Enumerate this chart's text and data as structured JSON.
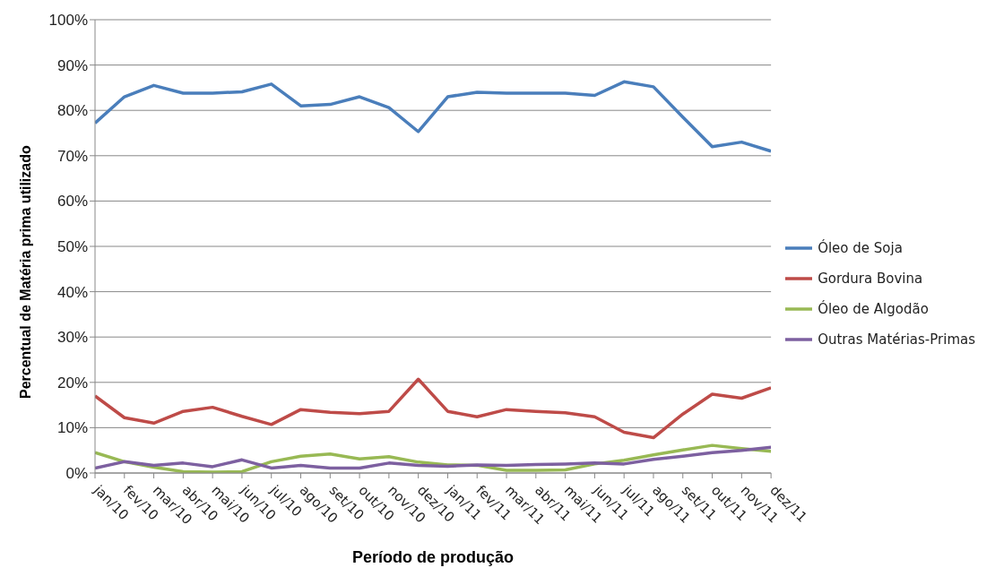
{
  "chart_data": {
    "type": "line",
    "xlabel": "Período de produção",
    "ylabel": "Percentual de Matéria prima utilizado",
    "categories": [
      "jan/10",
      "fev/10",
      "mar/10",
      "abr/10",
      "mai/10",
      "jun/10",
      "jul/10",
      "ago/10",
      "set/10",
      "out/10",
      "nov/10",
      "dez/10",
      "jan/11",
      "fev/11",
      "mar/11",
      "abr/11",
      "mai/11",
      "jun/11",
      "jul/11",
      "ago/11",
      "set/11",
      "out/11",
      "nov/11",
      "dez/11"
    ],
    "series": [
      {
        "name": "Óleo de Soja",
        "color": "#4a7ebb",
        "values": [
          77.2,
          83,
          85.5,
          83.8,
          83.8,
          84.1,
          85.8,
          81,
          81.3,
          83,
          80.6,
          75.3,
          83,
          84,
          83.8,
          83.8,
          83.8,
          83.3,
          86.3,
          85.2,
          78.5,
          72,
          73,
          71
        ]
      },
      {
        "name": "Gordura Bovina",
        "color": "#be4b48",
        "values": [
          17,
          12.2,
          11,
          13.6,
          14.5,
          12.5,
          10.7,
          14,
          13.4,
          13.1,
          13.6,
          20.7,
          13.6,
          12.4,
          14,
          13.6,
          13.3,
          12.4,
          9,
          7.8,
          13,
          17.4,
          16.5,
          18.8
        ]
      },
      {
        "name": "Óleo de Algodão",
        "color": "#98b954",
        "values": [
          4.5,
          2.5,
          1.3,
          0.3,
          0.2,
          0.3,
          2.5,
          3.7,
          4.2,
          3.1,
          3.6,
          2.4,
          1.8,
          1.7,
          0.6,
          0.6,
          0.7,
          2,
          2.8,
          4,
          5.1,
          6.1,
          5.4,
          4.8
        ]
      },
      {
        "name": "Outras Matérias-Primas",
        "color": "#7d60a0",
        "values": [
          1.1,
          2.5,
          1.7,
          2.2,
          1.4,
          2.9,
          1.1,
          1.7,
          1.1,
          1.1,
          2.2,
          1.7,
          1.5,
          1.8,
          1.7,
          1.9,
          2,
          2.2,
          2,
          3,
          3.7,
          4.5,
          5,
          5.7
        ]
      }
    ],
    "ylim": [
      0,
      100
    ],
    "yticks": [
      {
        "value": 0,
        "label": "0%"
      },
      {
        "value": 10,
        "label": "10%"
      },
      {
        "value": 20,
        "label": "20%"
      },
      {
        "value": 30,
        "label": "30%"
      },
      {
        "value": 40,
        "label": "40%"
      },
      {
        "value": 50,
        "label": "50%"
      },
      {
        "value": 60,
        "label": "60%"
      },
      {
        "value": 70,
        "label": "70%"
      },
      {
        "value": 80,
        "label": "80%"
      },
      {
        "value": 90,
        "label": "90%"
      },
      {
        "value": 100,
        "label": "100%"
      }
    ],
    "grid": "y",
    "legend": "right",
    "marker": "none",
    "line_style": "solid"
  }
}
